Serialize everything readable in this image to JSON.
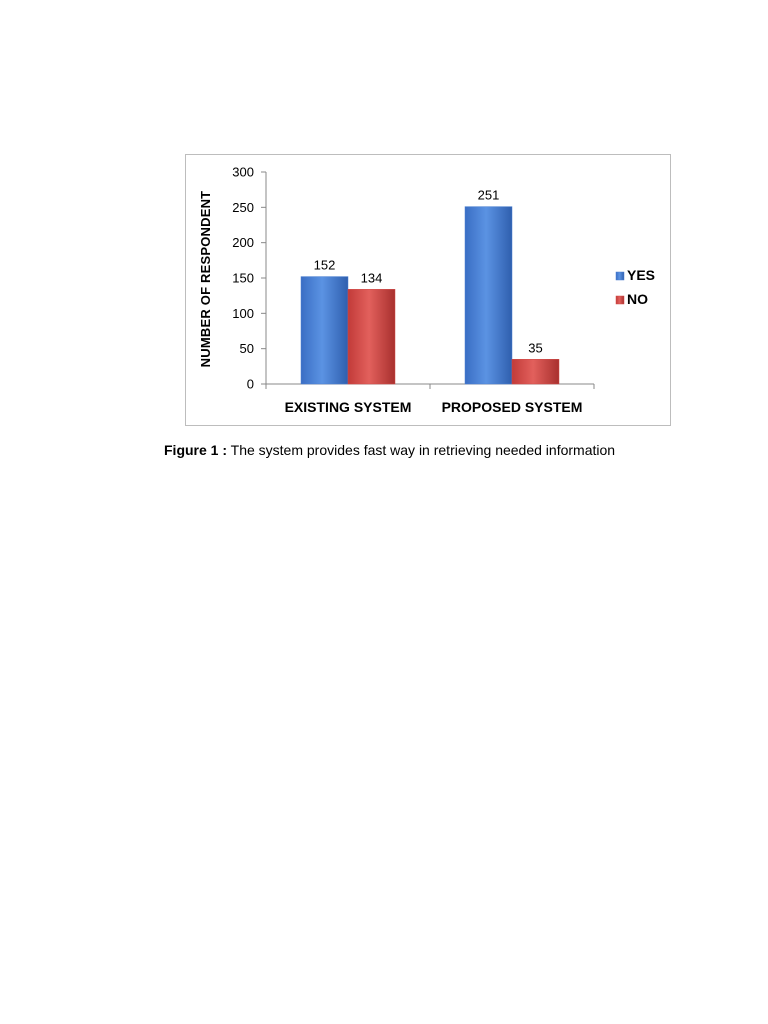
{
  "chart_data": {
    "type": "bar",
    "categories": [
      "EXISTING SYSTEM",
      "PROPOSED SYSTEM"
    ],
    "series": [
      {
        "name": "YES",
        "values": [
          152,
          251
        ],
        "color": "#4a7fd0"
      },
      {
        "name": "NO",
        "values": [
          134,
          35
        ],
        "color": "#d24a47"
      }
    ],
    "ylabel": "NUMBER OF RESPONDENT",
    "ylim": [
      0,
      300
    ],
    "yticks": [
      0,
      50,
      100,
      150,
      200,
      250,
      300
    ],
    "grid": false,
    "legend_position": "right"
  },
  "caption": {
    "label": "Figure 1 :",
    "text": "The system provides fast way in retrieving needed information"
  }
}
